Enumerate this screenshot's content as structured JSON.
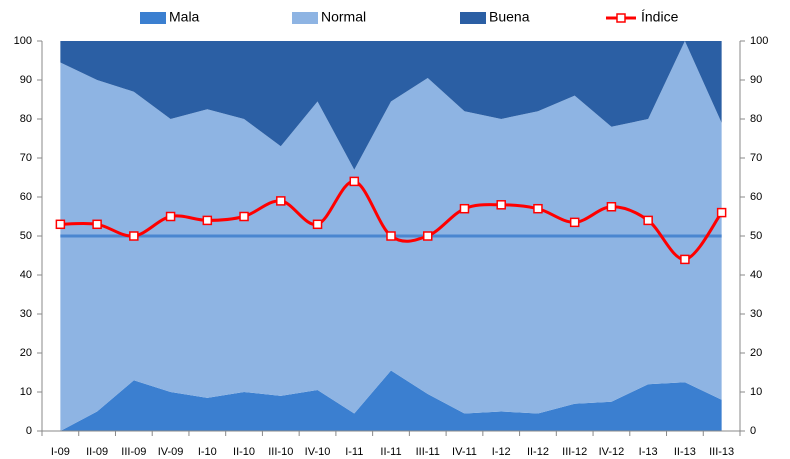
{
  "chart_data": {
    "type": "stacked_area_line",
    "categories": [
      "I-09",
      "II-09",
      "III-09",
      "IV-09",
      "I-10",
      "II-10",
      "III-10",
      "IV-10",
      "I-11",
      "II-11",
      "III-11",
      "IV-11",
      "I-12",
      "II-12",
      "III-12",
      "IV-12",
      "I-13",
      "II-13",
      "III-13"
    ],
    "series": [
      {
        "name": "Mala",
        "color": "#3b7fd0",
        "kind": "area",
        "values": [
          0,
          5,
          13,
          10,
          8.5,
          10,
          9,
          10.5,
          4.5,
          15.5,
          9.5,
          4.5,
          5,
          4.5,
          7,
          7.5,
          12,
          12.5,
          8
        ]
      },
      {
        "name": "Normal",
        "color": "#8eb4e3",
        "kind": "area",
        "values": [
          94.5,
          85,
          74,
          70,
          74,
          70,
          64,
          74,
          62.5,
          69,
          81,
          77.5,
          75,
          77.5,
          79,
          70.5,
          68,
          87.5,
          71
        ]
      },
      {
        "name": "Buena",
        "color": "#2b5fa4",
        "kind": "area",
        "values": [
          5.5,
          10,
          13,
          20,
          17.5,
          20,
          27,
          15.5,
          33,
          15.5,
          9.5,
          18,
          20,
          18,
          14,
          22,
          20,
          0,
          21
        ]
      },
      {
        "name": "Índice",
        "color": "#ff0000",
        "kind": "line",
        "values": [
          53,
          53,
          50,
          55,
          54,
          55,
          59,
          53,
          64,
          50,
          50,
          57,
          58,
          57,
          53.5,
          57.5,
          54,
          44,
          56
        ]
      }
    ],
    "reference_line": {
      "value": 50,
      "color": "#4a86d0"
    },
    "ylim": [
      0,
      100
    ],
    "yticks": [
      0,
      10,
      20,
      30,
      40,
      50,
      60,
      70,
      80,
      90,
      100
    ],
    "y2lim": [
      0,
      100
    ],
    "y2ticks": [
      0,
      10,
      20,
      30,
      40,
      50,
      60,
      70,
      80,
      90,
      100
    ],
    "legend": "top"
  }
}
